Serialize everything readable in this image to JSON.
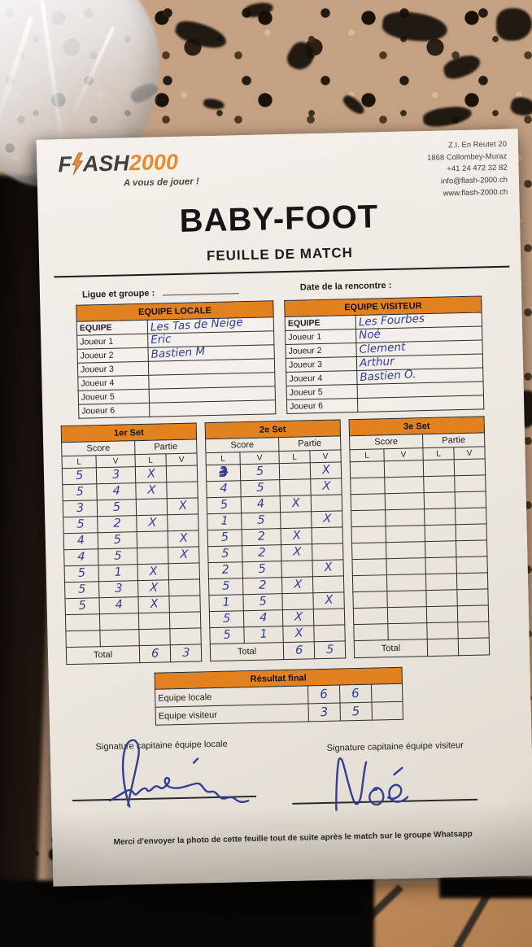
{
  "colors": {
    "accent": "#e2811f",
    "ink_blue": "#333d92",
    "paper": "#ece7df"
  },
  "logo": {
    "part1": "F",
    "part2": "ASH",
    "part3": "2000",
    "tagline": "A vous de jouer !"
  },
  "address": [
    "Z.I. En Reutet 20",
    "1868 Collombey-Muraz",
    "+41 24 472 32 82",
    "info@flash-2000.ch",
    "www.flash-2000.ch"
  ],
  "title": "BABY-FOOT",
  "subtitle": "FEUILLE DE MATCH",
  "fields": {
    "league_label": "Ligue et groupe :",
    "league_value": "",
    "date_label": "Date de la rencontre :",
    "date_value": ""
  },
  "teams": {
    "local": {
      "header": "EQUIPE LOCALE",
      "rows": [
        {
          "label": "EQUIPE",
          "value": "Les Tas de Neige"
        },
        {
          "label": "Joueur 1",
          "value": "Eric"
        },
        {
          "label": "Joueur 2",
          "value": "Bastien M"
        },
        {
          "label": "Joueur 3",
          "value": ""
        },
        {
          "label": "Joueur 4",
          "value": ""
        },
        {
          "label": "Joueur 5",
          "value": ""
        },
        {
          "label": "Joueur 6",
          "value": ""
        }
      ]
    },
    "visitor": {
      "header": "EQUIPE VISITEUR",
      "rows": [
        {
          "label": "EQUIPE",
          "value": "Les Fourbes"
        },
        {
          "label": "Joueur 1",
          "value": "Noé"
        },
        {
          "label": "Joueur 2",
          "value": "Clement"
        },
        {
          "label": "Joueur 3",
          "value": "Arthur"
        },
        {
          "label": "Joueur 4",
          "value": "Bastien O."
        },
        {
          "label": "Joueur 5",
          "value": ""
        },
        {
          "label": "Joueur 6",
          "value": ""
        }
      ]
    }
  },
  "set_labels": {
    "score": "Score",
    "partie": "Partie",
    "cols": [
      "L",
      "V",
      "L",
      "V"
    ],
    "total": "Total"
  },
  "sets": [
    {
      "title": "1er Set",
      "rows": [
        [
          "5",
          "3",
          "X",
          ""
        ],
        [
          "5",
          "4",
          "X",
          ""
        ],
        [
          "3",
          "5",
          "",
          "X"
        ],
        [
          "5",
          "2",
          "X",
          ""
        ],
        [
          "4",
          "5",
          "",
          "X"
        ],
        [
          "4",
          "5",
          "",
          "X"
        ],
        [
          "5",
          "1",
          "X",
          ""
        ],
        [
          "5",
          "3",
          "X",
          ""
        ],
        [
          "5",
          "4",
          "X",
          ""
        ],
        [
          "",
          "",
          "",
          ""
        ],
        [
          "",
          "",
          "",
          ""
        ]
      ],
      "total_l": "6",
      "total_v": "3",
      "scribbles": []
    },
    {
      "title": "2e Set",
      "rows": [
        [
          "3",
          "5",
          "",
          "X"
        ],
        [
          "4",
          "5",
          "",
          "X"
        ],
        [
          "5",
          "4",
          "X",
          ""
        ],
        [
          "1",
          "5",
          "",
          "X"
        ],
        [
          "5",
          "2",
          "X",
          ""
        ],
        [
          "5",
          "2",
          "X",
          ""
        ],
        [
          "2",
          "5",
          "",
          "X"
        ],
        [
          "5",
          "2",
          "X",
          ""
        ],
        [
          "1",
          "5",
          "",
          "X"
        ],
        [
          "5",
          "4",
          "X",
          ""
        ],
        [
          "5",
          "1",
          "X",
          ""
        ]
      ],
      "total_l": "6",
      "total_v": "5",
      "scribbles": [
        [
          0,
          0
        ]
      ]
    },
    {
      "title": "3e Set",
      "rows": [
        [
          "",
          "",
          "",
          ""
        ],
        [
          "",
          "",
          "",
          ""
        ],
        [
          "",
          "",
          "",
          ""
        ],
        [
          "",
          "",
          "",
          ""
        ],
        [
          "",
          "",
          "",
          ""
        ],
        [
          "",
          "",
          "",
          ""
        ],
        [
          "",
          "",
          "",
          ""
        ],
        [
          "",
          "",
          "",
          ""
        ],
        [
          "",
          "",
          "",
          ""
        ],
        [
          "",
          "",
          "",
          ""
        ],
        [
          "",
          "",
          "",
          ""
        ]
      ],
      "total_l": "",
      "total_v": "",
      "scribbles": []
    }
  ],
  "final": {
    "header": "Résultat final",
    "rows": [
      {
        "label": "Equipe locale",
        "values": [
          "6",
          "6",
          ""
        ]
      },
      {
        "label": "Equipe visiteur",
        "values": [
          "3",
          "5",
          ""
        ]
      }
    ]
  },
  "signatures": {
    "local_label": "Signature capitaine équipe locale",
    "visitor_label": "Signature capitaine équipe visiteur",
    "visitor_name": "Noé"
  },
  "footer": "Merci d'envoyer la photo de cette feuille tout de suite après le match sur le groupe Whatsapp"
}
